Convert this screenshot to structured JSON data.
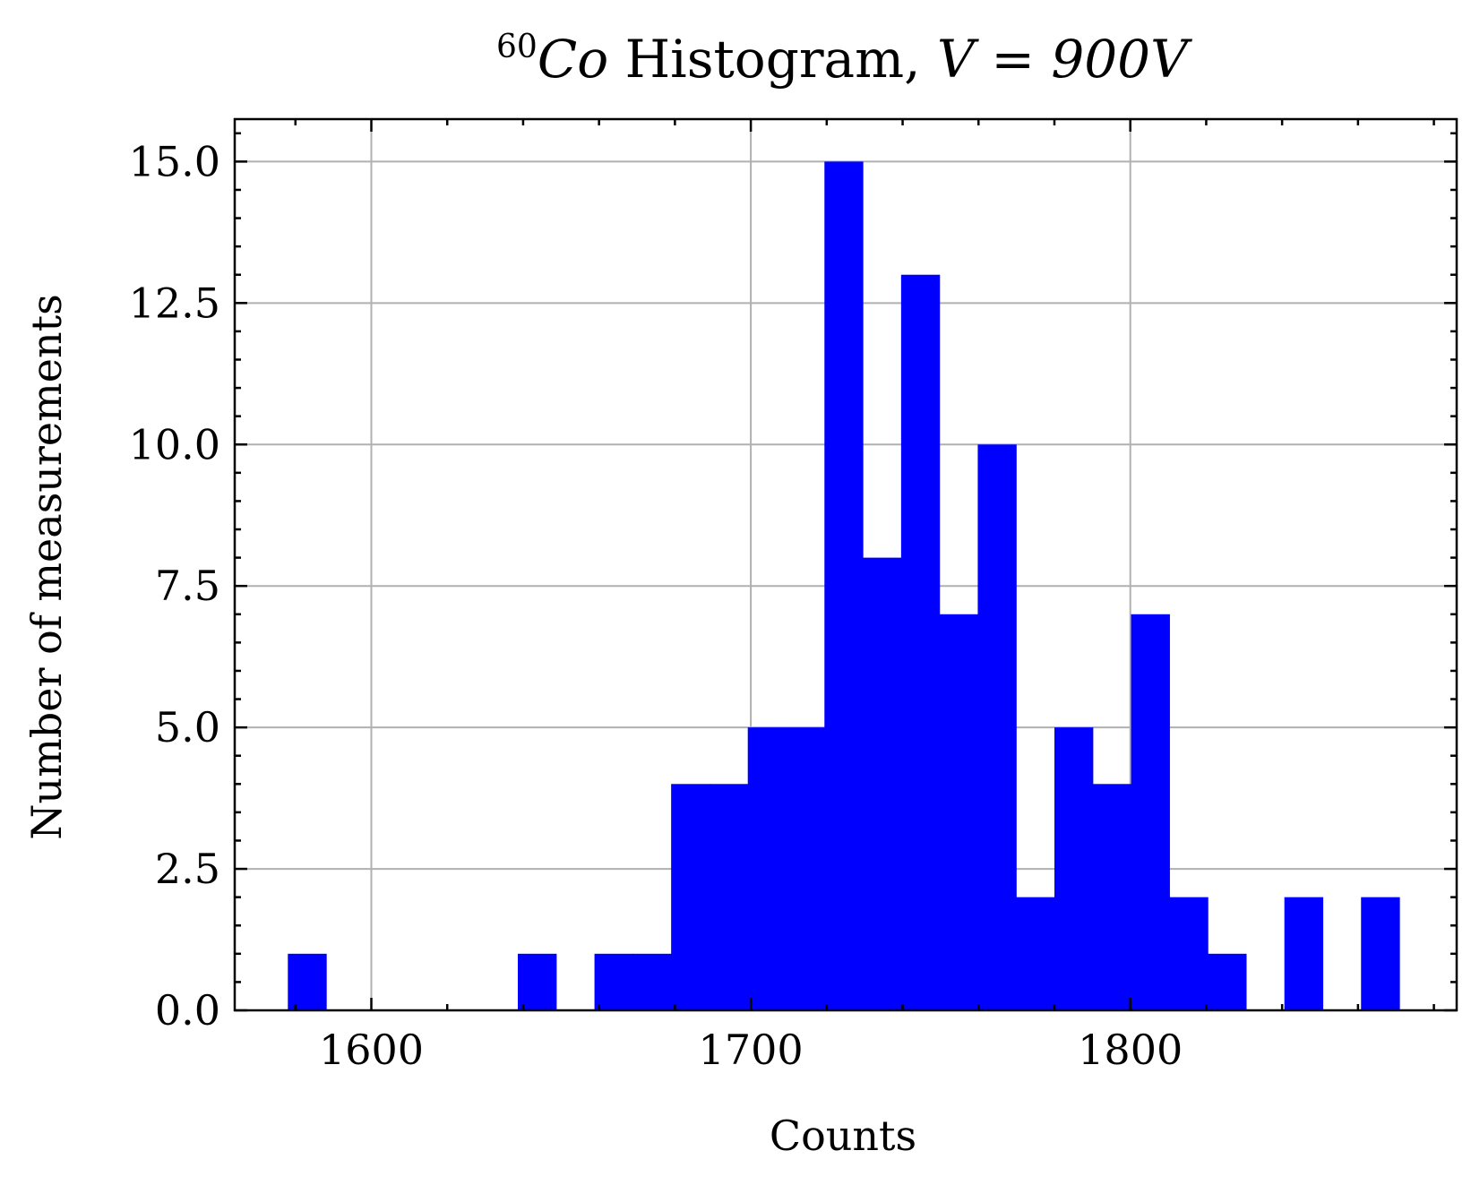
{
  "chart_data": {
    "type": "bar",
    "title_superscript": "60",
    "title_isotope": "Co",
    "title_middle": " Histogram, ",
    "title_equation": "V = 900V",
    "xlabel": "Counts",
    "ylabel": "Number of measurements",
    "xlim": [
      1564,
      1886
    ],
    "ylim": [
      0,
      15.75
    ],
    "bin_width": 10.1,
    "bins": [
      {
        "start": 1578.0,
        "count": 1
      },
      {
        "start": 1588.1,
        "count": 0
      },
      {
        "start": 1598.2,
        "count": 0
      },
      {
        "start": 1608.3,
        "count": 0
      },
      {
        "start": 1618.4,
        "count": 0
      },
      {
        "start": 1628.5,
        "count": 0
      },
      {
        "start": 1638.6,
        "count": 1
      },
      {
        "start": 1648.7,
        "count": 0
      },
      {
        "start": 1658.8,
        "count": 1
      },
      {
        "start": 1668.9,
        "count": 1
      },
      {
        "start": 1679.0,
        "count": 4
      },
      {
        "start": 1689.1,
        "count": 4
      },
      {
        "start": 1699.2,
        "count": 5
      },
      {
        "start": 1709.3,
        "count": 5
      },
      {
        "start": 1719.4,
        "count": 15
      },
      {
        "start": 1729.5,
        "count": 8
      },
      {
        "start": 1739.6,
        "count": 13
      },
      {
        "start": 1749.7,
        "count": 7
      },
      {
        "start": 1759.8,
        "count": 10
      },
      {
        "start": 1769.9,
        "count": 2
      },
      {
        "start": 1780.0,
        "count": 5
      },
      {
        "start": 1790.1,
        "count": 4
      },
      {
        "start": 1800.2,
        "count": 7
      },
      {
        "start": 1810.3,
        "count": 2
      },
      {
        "start": 1820.4,
        "count": 1
      },
      {
        "start": 1830.5,
        "count": 0
      },
      {
        "start": 1840.6,
        "count": 2
      },
      {
        "start": 1850.7,
        "count": 0
      },
      {
        "start": 1860.8,
        "count": 2
      }
    ],
    "x_ticks": [
      1600,
      1700,
      1800
    ],
    "x_tick_labels": [
      "1600",
      "1700",
      "1800"
    ],
    "x_minor_step": 20,
    "y_ticks": [
      0,
      2.5,
      5,
      7.5,
      10,
      12.5,
      15
    ],
    "y_tick_labels": [
      "0.0",
      "2.5",
      "5.0",
      "7.5",
      "10.0",
      "12.5",
      "15.0"
    ],
    "y_minor_step": 0.5,
    "grid": true,
    "bar_color": "#0000ff",
    "grid_color": "#b0b0b0"
  }
}
